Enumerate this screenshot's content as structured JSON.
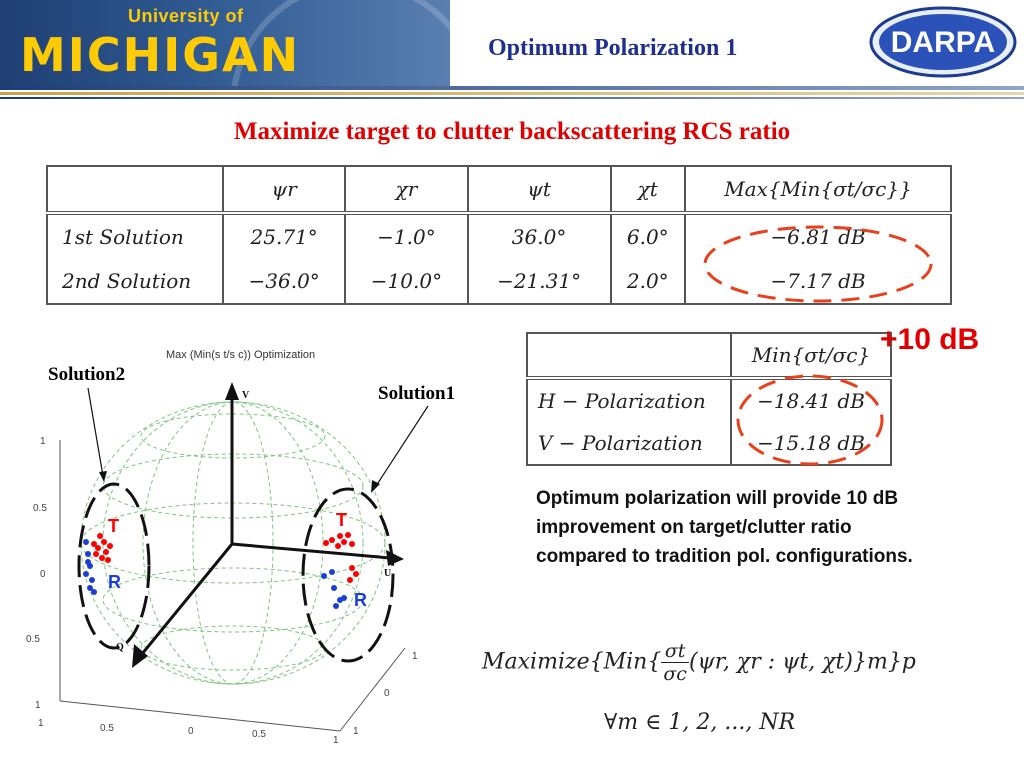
{
  "header": {
    "university_small": "University of",
    "university_big": "MICHIGAN",
    "slide_title": "Optimum Polarization 1",
    "darpa_logo_text": "DARPA"
  },
  "subtitle": "Maximize target to clutter backscattering RCS ratio",
  "table1": {
    "headers": [
      "",
      "ψr",
      "χr",
      "ψt",
      "χt",
      "Max{Min{σt/σc}}"
    ],
    "rows": [
      {
        "label": "1st Solution",
        "psi_r": "25.71°",
        "chi_r": "−1.0°",
        "psi_t": "36.0°",
        "chi_t": "6.0°",
        "max": "−6.81 dB"
      },
      {
        "label": "2nd Solution",
        "psi_r": "−36.0°",
        "chi_r": "−10.0°",
        "psi_t": "−21.31°",
        "chi_t": "2.0°",
        "max": "−7.17 dB"
      }
    ]
  },
  "table2": {
    "header": "Min{σt/σc}",
    "rows": [
      {
        "label": "H − Polarization",
        "value": "−18.41 dB"
      },
      {
        "label": "V − Polarization",
        "value": "−15.18 dB"
      }
    ]
  },
  "improvement_label": "+10 dB",
  "description": "Optimum polarization will provide 10 dB improvement on target/clutter ratio compared to tradition pol. configurations.",
  "formula": {
    "line1_prefix": "Maximize{Min{",
    "frac_num": "σt",
    "frac_den": "σc",
    "line1_suffix": "(ψr, χr : ψt, χt)}m}p",
    "line2": "∀m ∈ 1, 2, ..., NR"
  },
  "plot": {
    "title": "Max (Min(s t/s c)) Optimization",
    "axis_v": "V",
    "axis_u": "U",
    "axis_q": "Q",
    "ticks_left": [
      "1",
      "0.5",
      "0",
      "0.5",
      "1"
    ],
    "ticks_bottom": [
      "1",
      "0.5",
      "0",
      "0.5",
      "1"
    ],
    "ticks_right": [
      "1",
      "0",
      "1"
    ],
    "solution1_label": "Solution1",
    "solution2_label": "Solution2",
    "t_label": "T",
    "r_label": "R",
    "colors": {
      "target": "#ff0000",
      "receive": "#1a3fd6",
      "sphere": "#7fc47f",
      "ellipse_table": "#e8401c"
    }
  }
}
